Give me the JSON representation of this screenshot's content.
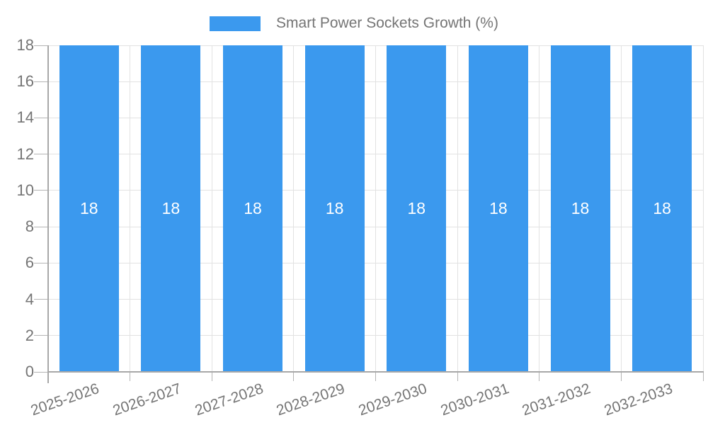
{
  "chart_data": {
    "type": "bar",
    "title": "Smart Power Sockets Growth (%)",
    "categories": [
      "2025-2026",
      "2026-2027",
      "2027-2028",
      "2028-2029",
      "2029-2030",
      "2030-2031",
      "2031-2032",
      "2032-2033"
    ],
    "values": [
      18,
      18,
      18,
      18,
      18,
      18,
      18,
      18
    ],
    "bar_value_labels": [
      "18",
      "18",
      "18",
      "18",
      "18",
      "18",
      "18",
      "18"
    ],
    "yticks": [
      0,
      2,
      4,
      6,
      8,
      10,
      12,
      14,
      16,
      18
    ],
    "ylim": [
      0,
      18
    ],
    "xlabel": "",
    "ylabel": "",
    "legend_position": "top-center",
    "grid": true
  },
  "colors": {
    "bar": "#3B99EE",
    "grid": "#E2E2E2",
    "tick": "#B4B4B4",
    "axis": "#A8A8A8",
    "text": "#757575",
    "bar_label": "#FFFFFF",
    "background": "#FFFFFF"
  }
}
